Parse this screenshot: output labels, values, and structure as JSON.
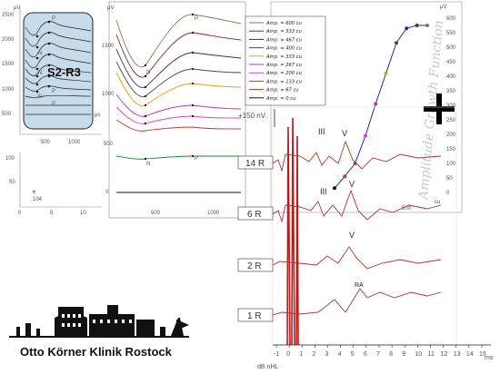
{
  "panel_left": {
    "label": "S2-R3",
    "y_unit": "μV",
    "x_unit": "μs",
    "y_ticks": [
      "2500",
      "2000",
      "1500",
      "1000",
      "500"
    ],
    "x_ticks": [
      "500",
      "1000"
    ],
    "wave_labels": [
      "N",
      "N",
      "P",
      "P",
      "N",
      "P",
      "P",
      "P"
    ]
  },
  "panel_small": {
    "y_ticks": [
      "100",
      "50"
    ],
    "x_ticks": [
      "0",
      "5",
      "10"
    ],
    "point_label": "104"
  },
  "panel_middle": {
    "y_unit": "μV",
    "y_ticks": [
      "1500",
      "1000",
      "500",
      "0"
    ],
    "x_ticks": [
      "500",
      "1000"
    ],
    "peak_labels": {
      "n": "N",
      "p": "P"
    },
    "scale_label": "+150 nV"
  },
  "legend": {
    "entries": [
      {
        "label": "Amp. = 600 cu",
        "color": "#7d7d5a"
      },
      {
        "label": "Amp. = 533 cu",
        "color": "#8b2323"
      },
      {
        "label": "Amp. = 467 cu",
        "color": "#1f2f8f"
      },
      {
        "label": "Amp. = 400 cu",
        "color": "#4a4a4a"
      },
      {
        "label": "Amp. = 333 cu",
        "color": "#e89a18"
      },
      {
        "label": "Amp. = 267 cu",
        "color": "#b235c8"
      },
      {
        "label": "Amp. = 200 cu",
        "color": "#e33bd0"
      },
      {
        "label": "Amp. = 133 cu",
        "color": "#1a8a2a"
      },
      {
        "label": "Amp. = 67 cu",
        "color": "#c0392b"
      },
      {
        "label": "Amp. = 0 cu",
        "color": "#111111"
      }
    ]
  },
  "panel_growth": {
    "y_unit": "μV",
    "y_ticks": [
      "600",
      "550",
      "500",
      "450",
      "400",
      "350",
      "300",
      "250",
      "200",
      "150",
      "100",
      "50",
      "0"
    ],
    "x_ticks": [
      "500"
    ],
    "x_unit": "cu",
    "watermark": "Amplitude Growth Function",
    "cursor_icon": "crosshair-plus-icon"
  },
  "chart_data": {
    "type": "line",
    "xlabel": "",
    "ylabel": "",
    "x_unit": "ms",
    "x_ticks": [
      "-1",
      "0",
      "1",
      "2",
      "3",
      "4",
      "5",
      "6",
      "7",
      "8",
      "9",
      "10",
      "11",
      "12",
      "13",
      "14",
      "15"
    ],
    "xlim": [
      -1,
      15
    ],
    "ylabel_bottom": "dB nHL",
    "series": [
      {
        "name": "14 R",
        "peaks": [
          "III",
          "V"
        ],
        "color": "#b03030"
      },
      {
        "name": "6 R",
        "peaks": [
          "III",
          "V"
        ],
        "color": "#b03030"
      },
      {
        "name": "2 R",
        "peaks": [
          "V"
        ],
        "color": "#b03030"
      },
      {
        "name": "1 R",
        "peaks": [
          "RA"
        ],
        "color": "#b03030"
      }
    ],
    "growth": {
      "type": "line",
      "x_unit": "cu",
      "points": [
        {
          "x": 67,
          "y": 15
        },
        {
          "x": 133,
          "y": 55
        },
        {
          "x": 200,
          "y": 100
        },
        {
          "x": 267,
          "y": 195
        },
        {
          "x": 333,
          "y": 305
        },
        {
          "x": 400,
          "y": 410
        },
        {
          "x": 467,
          "y": 515
        },
        {
          "x": 533,
          "y": 565
        },
        {
          "x": 600,
          "y": 575
        },
        {
          "x": 667,
          "y": 575
        }
      ]
    }
  },
  "logo": {
    "text": "Otto Körner Klinik Rostock"
  }
}
